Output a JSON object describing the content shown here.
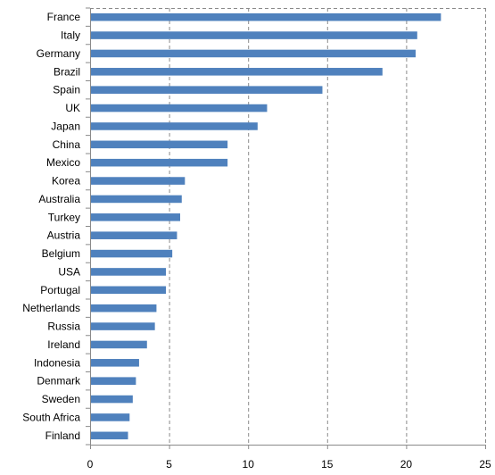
{
  "chart_data": {
    "type": "bar",
    "orientation": "horizontal",
    "title": "",
    "xlabel": "",
    "ylabel": "",
    "categories": [
      "France",
      "Italy",
      "Germany",
      "Brazil",
      "Spain",
      "UK",
      "Japan",
      "China",
      "Mexico",
      "Korea",
      "Australia",
      "Turkey",
      "Austria",
      "Belgium",
      "USA",
      "Portugal",
      "Netherlands",
      "Russia",
      "Ireland",
      "Indonesia",
      "Denmark",
      "Sweden",
      "South Africa",
      "Finland"
    ],
    "values": [
      22.2,
      20.7,
      20.6,
      18.5,
      14.7,
      11.2,
      10.6,
      8.7,
      8.7,
      6.0,
      5.8,
      5.7,
      5.5,
      5.2,
      4.8,
      4.8,
      4.2,
      4.1,
      3.6,
      3.1,
      2.9,
      2.7,
      2.5,
      2.4
    ],
    "xlim": [
      0,
      25
    ],
    "xticks": [
      0,
      5,
      10,
      15,
      20,
      25
    ],
    "grid": true,
    "legend": "none",
    "bar_color": "#4f81bd"
  }
}
